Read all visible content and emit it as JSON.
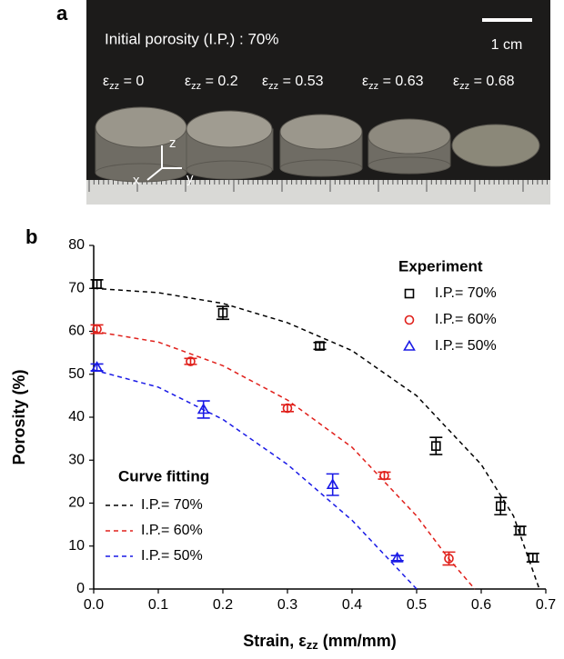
{
  "panel_a": {
    "letter": "a",
    "caption": "Initial porosity (I.P.) : 70%",
    "scale": "1 cm",
    "strains": [
      {
        "symbol": "ε",
        "sub": "zz",
        "value": " = 0"
      },
      {
        "symbol": "ε",
        "sub": "zz",
        "value": " = 0.2"
      },
      {
        "symbol": "ε",
        "sub": "zz",
        "value": " = 0.53"
      },
      {
        "symbol": "ε",
        "sub": "zz",
        "value": " = 0.63"
      },
      {
        "symbol": "ε",
        "sub": "zz",
        "value": " = 0.68"
      }
    ],
    "axes": [
      "z",
      "x",
      "y"
    ]
  },
  "chart_data": {
    "type": "scatter",
    "letter": "b",
    "x_label": [
      "Strain, ε",
      "zz",
      " (mm/mm)"
    ],
    "y_label": "Porosity (%)",
    "xlim": [
      0,
      0.7
    ],
    "ylim": [
      0,
      80
    ],
    "xticks": [
      {
        "value": 0,
        "label": "0.0"
      },
      0.1,
      0.2,
      0.3,
      0.4,
      0.5,
      0.6,
      0.7
    ],
    "yticks": [
      0,
      10,
      20,
      30,
      40,
      50,
      60,
      70,
      80
    ],
    "legend_title": "Experiment",
    "series": [
      {
        "name": "I.P.= 70%",
        "color": "#000000",
        "marker": "square",
        "x": [
          0.005,
          0.2,
          0.35,
          0.53,
          0.63,
          0.66,
          0.68
        ],
        "values": [
          71,
          64.3,
          56.6,
          33.3,
          19.3,
          13.6,
          7.3
        ],
        "errors": [
          1,
          1.5,
          0.8,
          2,
          2,
          1,
          1
        ]
      },
      {
        "name": "I.P.= 60%",
        "color": "#e0201b",
        "marker": "circle",
        "x": [
          0.005,
          0.15,
          0.3,
          0.45,
          0.55
        ],
        "values": [
          60.5,
          53,
          42.1,
          26.4,
          7.1
        ],
        "errors": [
          1,
          0.7,
          0.8,
          0.8,
          1.5
        ]
      },
      {
        "name": "I.P.= 50%",
        "color": "#1a1ae6",
        "marker": "triangle",
        "x": [
          0.005,
          0.17,
          0.37,
          0.47
        ],
        "values": [
          51.6,
          41.8,
          24.3,
          7.2
        ],
        "errors": [
          0.8,
          2,
          2.5,
          0.6
        ]
      }
    ],
    "fit_title": "Curve fitting",
    "fits": [
      {
        "name": "I.P.= 70%",
        "color": "#000000",
        "x": [
          0,
          0.1,
          0.2,
          0.3,
          0.4,
          0.5,
          0.6,
          0.65,
          0.69
        ],
        "values": [
          70,
          69,
          66.5,
          62,
          55.5,
          45,
          29,
          17,
          0
        ]
      },
      {
        "name": "I.P.= 60%",
        "color": "#e0201b",
        "x": [
          0,
          0.1,
          0.2,
          0.3,
          0.4,
          0.5,
          0.55,
          0.59
        ],
        "values": [
          60,
          57.5,
          52,
          44,
          33,
          17,
          7,
          0
        ]
      },
      {
        "name": "I.P.= 50%",
        "color": "#1a1ae6",
        "x": [
          0,
          0.1,
          0.2,
          0.3,
          0.4,
          0.45,
          0.5
        ],
        "values": [
          51,
          47,
          39.5,
          29,
          16,
          8,
          0
        ]
      }
    ]
  }
}
